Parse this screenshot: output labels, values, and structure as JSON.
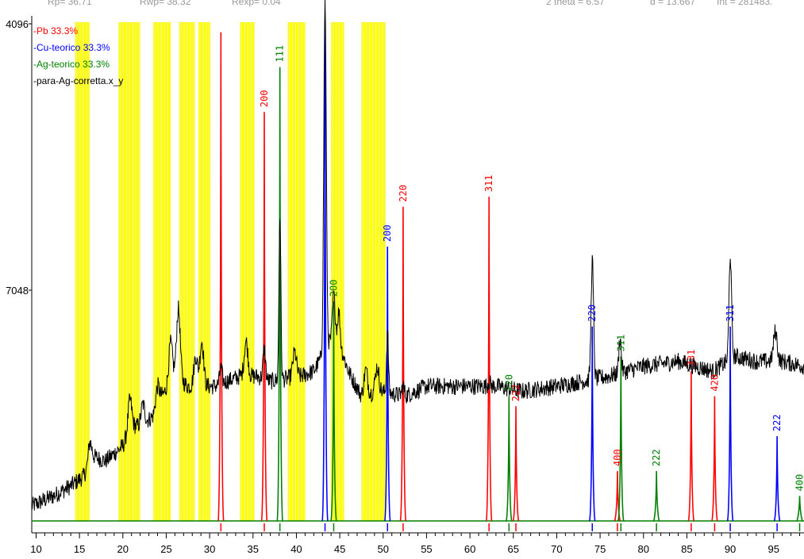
{
  "header": {
    "rp": "Rp= 36.71",
    "rwp": "Rwp= 38.32",
    "rexp": "Rexp= 0.04",
    "two_theta": "2 theta = 6.57",
    "d": "d = 13.667",
    "int": "Int = 281483."
  },
  "legend": [
    {
      "label": "Pb  33.3%",
      "color": "#ff0000"
    },
    {
      "label": "Cu-teorico  33.3%",
      "color": "#0000ff"
    },
    {
      "label": "Ag-teorico  33.3%",
      "color": "#008000"
    },
    {
      "label": "para-Ag-corretta.x_y",
      "color": "#000000"
    }
  ],
  "chart_data": {
    "type": "line",
    "title": "",
    "xlabel": "",
    "ylabel": "",
    "xlim": [
      9.5,
      98.5
    ],
    "x_ticks": [
      10,
      15,
      20,
      25,
      30,
      35,
      40,
      45,
      50,
      55,
      60,
      65,
      70,
      75,
      80,
      85,
      90,
      95
    ],
    "x_tick_labels": [
      "10",
      "15",
      "20",
      "25",
      "30",
      "35",
      "40",
      "45",
      "50",
      "55",
      "60",
      "65",
      "70",
      "75",
      "80",
      "85",
      "90",
      "95"
    ],
    "y_tick_labels": [
      "4096",
      "7048"
    ],
    "excluded_regions": [
      [
        14.5,
        16.2
      ],
      [
        19.5,
        22.0
      ],
      [
        23.5,
        25.5
      ],
      [
        26.5,
        28.3
      ],
      [
        28.7,
        30.1
      ],
      [
        33.5,
        35.2
      ],
      [
        39.0,
        41.0
      ],
      [
        44.0,
        45.5
      ],
      [
        47.5,
        50.3
      ]
    ],
    "series": [
      {
        "name": "Pb",
        "color": "#ff0000",
        "reflections": [
          {
            "x": 31.3,
            "height": 0.98,
            "label": ""
          },
          {
            "x": 36.3,
            "height": 0.82,
            "label": "200"
          },
          {
            "x": 52.3,
            "height": 0.63,
            "label": "220"
          },
          {
            "x": 62.2,
            "height": 0.65,
            "label": "311"
          },
          {
            "x": 65.3,
            "height": 0.23,
            "label": "222"
          },
          {
            "x": 77.0,
            "height": 0.1,
            "label": "400"
          },
          {
            "x": 85.5,
            "height": 0.3,
            "label": "331"
          },
          {
            "x": 88.2,
            "height": 0.25,
            "label": "420"
          }
        ]
      },
      {
        "name": "Cu-teorico",
        "color": "#0000ff",
        "reflections": [
          {
            "x": 43.3,
            "height": 1.0,
            "label": ""
          },
          {
            "x": 50.5,
            "height": 0.55,
            "label": "200"
          },
          {
            "x": 74.1,
            "height": 0.39,
            "label": "220"
          },
          {
            "x": 90.0,
            "height": 0.39,
            "label": "311"
          },
          {
            "x": 95.4,
            "height": 0.17,
            "label": "222"
          }
        ]
      },
      {
        "name": "Ag-teorico",
        "color": "#008000",
        "reflections": [
          {
            "x": 38.1,
            "height": 0.91,
            "label": "111"
          },
          {
            "x": 44.3,
            "height": 0.44,
            "label": "200"
          },
          {
            "x": 64.5,
            "height": 0.25,
            "label": "220"
          },
          {
            "x": 77.4,
            "height": 0.33,
            "label": "311"
          },
          {
            "x": 81.5,
            "height": 0.1,
            "label": "222"
          },
          {
            "x": 98.0,
            "height": 0.05,
            "label": "400"
          }
        ]
      },
      {
        "name": "para-Ag-corretta.x_y",
        "color": "#000000",
        "profile": [
          [
            9.5,
            0.03
          ],
          [
            12,
            0.05
          ],
          [
            14,
            0.07
          ],
          [
            15.5,
            0.09
          ],
          [
            16.5,
            0.13
          ],
          [
            18,
            0.12
          ],
          [
            20,
            0.15
          ],
          [
            21,
            0.19
          ],
          [
            22,
            0.19
          ],
          [
            23.5,
            0.21
          ],
          [
            24.5,
            0.25
          ],
          [
            26,
            0.29
          ],
          [
            27.5,
            0.27
          ],
          [
            29,
            0.27
          ],
          [
            30.5,
            0.27
          ],
          [
            32,
            0.28
          ],
          [
            33.5,
            0.29
          ],
          [
            35.5,
            0.29
          ],
          [
            37,
            0.28
          ],
          [
            40.5,
            0.29
          ],
          [
            42,
            0.3
          ],
          [
            44.5,
            0.38
          ],
          [
            46,
            0.3
          ],
          [
            47.5,
            0.25
          ],
          [
            49.5,
            0.26
          ],
          [
            52.5,
            0.25
          ],
          [
            55,
            0.27
          ],
          [
            60,
            0.27
          ],
          [
            63,
            0.27
          ],
          [
            66,
            0.26
          ],
          [
            70,
            0.27
          ],
          [
            73,
            0.28
          ],
          [
            76,
            0.29
          ],
          [
            80,
            0.31
          ],
          [
            84,
            0.32
          ],
          [
            88,
            0.3
          ],
          [
            90.5,
            0.33
          ],
          [
            93,
            0.32
          ],
          [
            96,
            0.32
          ],
          [
            98.5,
            0.31
          ]
        ],
        "peaks": [
          {
            "x": 16.2,
            "height": 0.04,
            "width": 0.25
          },
          {
            "x": 20.8,
            "height": 0.06,
            "width": 0.3
          },
          {
            "x": 22.3,
            "height": 0.04,
            "width": 0.3
          },
          {
            "x": 24.0,
            "height": 0.04,
            "width": 0.3
          },
          {
            "x": 25.5,
            "height": 0.08,
            "width": 0.3
          },
          {
            "x": 26.4,
            "height": 0.14,
            "width": 0.3
          },
          {
            "x": 28.4,
            "height": 0.06,
            "width": 0.3
          },
          {
            "x": 29.1,
            "height": 0.09,
            "width": 0.3
          },
          {
            "x": 31.3,
            "height": 0.03,
            "width": 0.2
          },
          {
            "x": 34.2,
            "height": 0.07,
            "width": 0.3
          },
          {
            "x": 36.3,
            "height": 0.06,
            "width": 0.2
          },
          {
            "x": 38.1,
            "height": 0.33,
            "width": 0.15
          },
          {
            "x": 39.8,
            "height": 0.05,
            "width": 0.3
          },
          {
            "x": 43.3,
            "height": 0.7,
            "width": 0.2
          },
          {
            "x": 44.3,
            "height": 0.08,
            "width": 0.2
          },
          {
            "x": 44.9,
            "height": 0.06,
            "width": 0.2
          },
          {
            "x": 48.0,
            "height": 0.05,
            "width": 0.3
          },
          {
            "x": 49.3,
            "height": 0.05,
            "width": 0.3
          },
          {
            "x": 50.5,
            "height": 0.12,
            "width": 0.15
          },
          {
            "x": 52.3,
            "height": 0.02,
            "width": 0.2
          },
          {
            "x": 62.2,
            "height": 0.01,
            "width": 0.2
          },
          {
            "x": 74.1,
            "height": 0.24,
            "width": 0.2
          },
          {
            "x": 77.3,
            "height": 0.07,
            "width": 0.2
          },
          {
            "x": 90.0,
            "height": 0.21,
            "width": 0.2
          },
          {
            "x": 95.2,
            "height": 0.06,
            "width": 0.3
          }
        ]
      }
    ]
  }
}
